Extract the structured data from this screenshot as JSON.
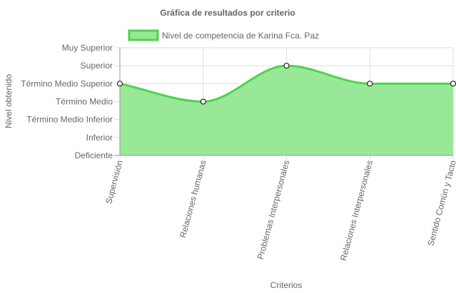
{
  "chart_data": {
    "type": "area",
    "title": "Gráfica de resultados por criterio",
    "xlabel": "Criterios",
    "ylabel": "Nivel obtenido",
    "y_levels": [
      "Deficiente",
      "Inferior",
      "Término Medio Inferior",
      "Término Medio",
      "Término Medio Superior",
      "Superior",
      "Muy Superior"
    ],
    "ylim": [
      0,
      6
    ],
    "categories": [
      "Supervisión",
      "Relaciones humanas",
      "Problemas Interpersonales",
      "Relaciones Interpersonales",
      "Sentido Común y Tacto"
    ],
    "series": [
      {
        "name": "Nivel de competencia de Karina Fca. Paz",
        "values": [
          4,
          3,
          5,
          4,
          4
        ],
        "color": "#4cd44c",
        "fill": "#98e898"
      }
    ],
    "grid": true,
    "legend": "top",
    "smooth": true
  }
}
